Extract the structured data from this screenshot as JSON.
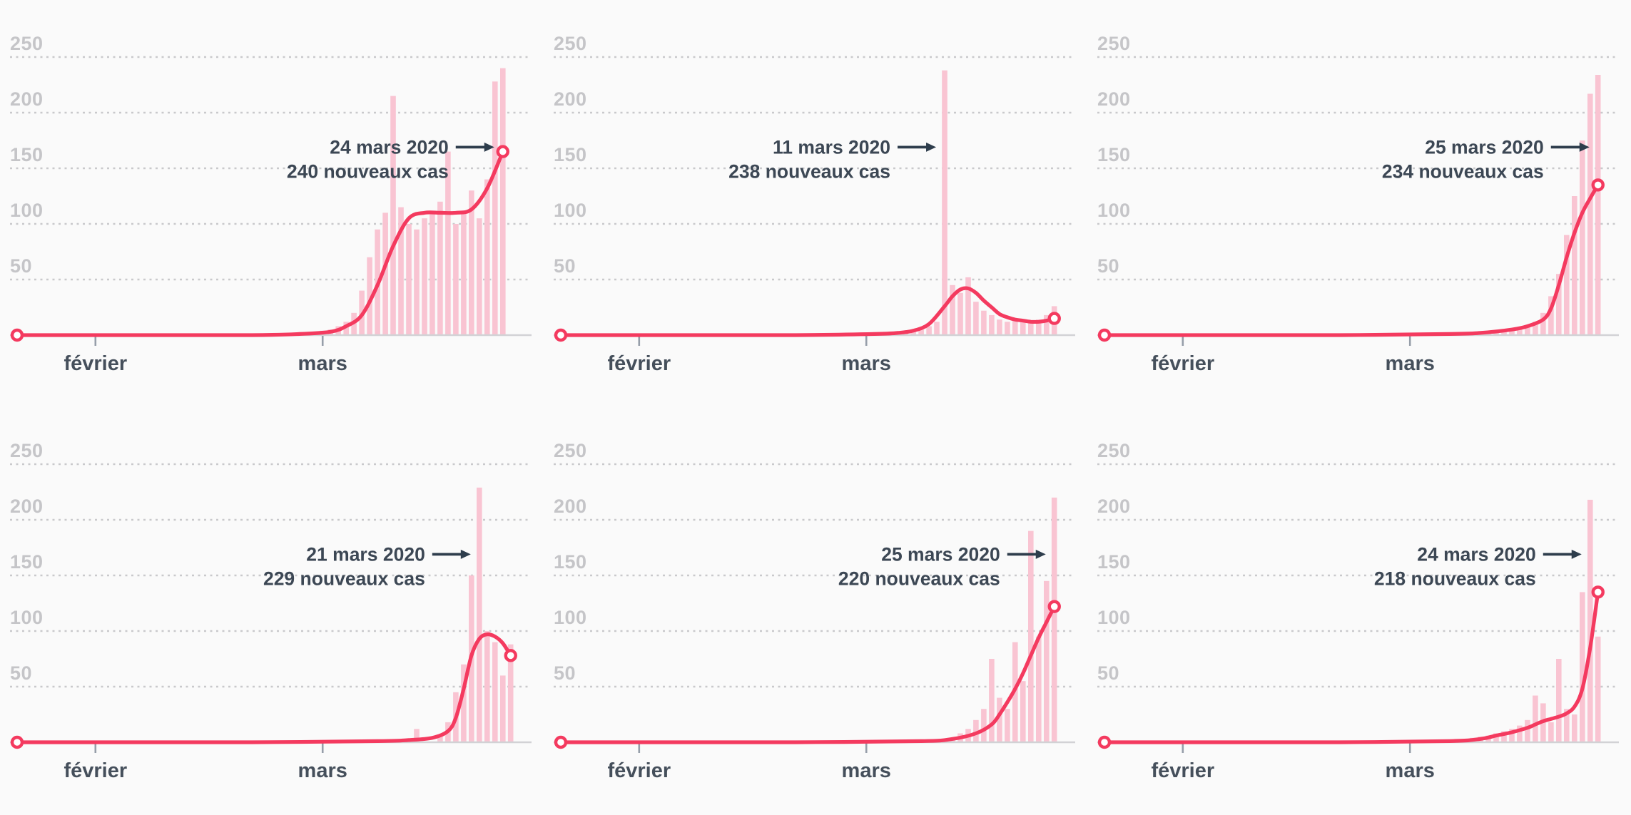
{
  "page": {
    "background": "#fafafa"
  },
  "colors": {
    "line": "#f43a5f",
    "bar": "#f9c4d2",
    "grid": "#c9c9cc",
    "baseline": "#d2d2d5",
    "tick": "#969ea9",
    "y_label": "#c5c5c8",
    "x_label": "#454f5b",
    "annotation_text": "#3c4754",
    "arrow": "#2e3d4c",
    "marker_fill": "#ffffff"
  },
  "axes": {
    "y_ticks": [
      50,
      100,
      150,
      200,
      250
    ],
    "y_max": 250,
    "x_ticks": [
      {
        "label": "février",
        "day": 10
      },
      {
        "label": "mars",
        "day": 39
      }
    ],
    "total_days": 64,
    "grid": "dotted"
  },
  "chart_data": [
    {
      "type": "bar+line",
      "annotation": {
        "date": "24 mars 2020",
        "cases": "240 nouveaux cas",
        "value": 240,
        "target_day": 62
      },
      "bars": [
        [
          34,
          1
        ],
        [
          35,
          1
        ],
        [
          36,
          2
        ],
        [
          37,
          2
        ],
        [
          38,
          3
        ],
        [
          39,
          4
        ],
        [
          40,
          5
        ],
        [
          41,
          8
        ],
        [
          42,
          12
        ],
        [
          43,
          20
        ],
        [
          44,
          40
        ],
        [
          45,
          70
        ],
        [
          46,
          95
        ],
        [
          47,
          110
        ],
        [
          48,
          215
        ],
        [
          49,
          115
        ],
        [
          50,
          100
        ],
        [
          51,
          95
        ],
        [
          52,
          105
        ],
        [
          53,
          110
        ],
        [
          54,
          120
        ],
        [
          55,
          165
        ],
        [
          56,
          100
        ],
        [
          57,
          110
        ],
        [
          58,
          130
        ],
        [
          59,
          105
        ],
        [
          60,
          140
        ],
        [
          61,
          228
        ],
        [
          62,
          240
        ]
      ],
      "line": [
        [
          0,
          0
        ],
        [
          15,
          0
        ],
        [
          30,
          0
        ],
        [
          36,
          1
        ],
        [
          40,
          3
        ],
        [
          42,
          8
        ],
        [
          44,
          18
        ],
        [
          46,
          45
        ],
        [
          48,
          80
        ],
        [
          50,
          105
        ],
        [
          52,
          110
        ],
        [
          54,
          110
        ],
        [
          56,
          110
        ],
        [
          58,
          113
        ],
        [
          60,
          132
        ],
        [
          62,
          165
        ]
      ]
    },
    {
      "type": "bar+line",
      "annotation": {
        "date": "11 mars 2020",
        "cases": "238 nouveaux cas",
        "value": 238,
        "target_day": 49
      },
      "bars": [
        [
          41,
          2
        ],
        [
          42,
          2
        ],
        [
          43,
          3
        ],
        [
          44,
          3
        ],
        [
          45,
          4
        ],
        [
          46,
          5
        ],
        [
          47,
          8
        ],
        [
          48,
          12
        ],
        [
          49,
          238
        ],
        [
          50,
          45
        ],
        [
          51,
          38
        ],
        [
          52,
          52
        ],
        [
          53,
          30
        ],
        [
          54,
          22
        ],
        [
          55,
          18
        ],
        [
          56,
          14
        ],
        [
          57,
          12
        ],
        [
          58,
          15
        ],
        [
          59,
          13
        ],
        [
          60,
          12
        ],
        [
          61,
          14
        ],
        [
          62,
          18
        ],
        [
          63,
          26
        ]
      ],
      "line": [
        [
          0,
          0
        ],
        [
          15,
          0
        ],
        [
          30,
          0
        ],
        [
          40,
          1
        ],
        [
          43,
          2
        ],
        [
          45,
          4
        ],
        [
          47,
          10
        ],
        [
          49,
          26
        ],
        [
          50,
          35
        ],
        [
          51,
          41
        ],
        [
          52,
          42
        ],
        [
          53,
          38
        ],
        [
          54,
          31
        ],
        [
          55,
          25
        ],
        [
          56,
          19
        ],
        [
          57,
          16
        ],
        [
          58,
          14
        ],
        [
          59,
          13
        ],
        [
          60,
          12
        ],
        [
          61,
          12
        ],
        [
          62,
          13
        ],
        [
          63,
          15
        ]
      ]
    },
    {
      "type": "bar+line",
      "annotation": {
        "date": "25 mars 2020",
        "cases": "234 nouveaux cas",
        "value": 234,
        "target_day": 63
      },
      "bars": [
        [
          48,
          2
        ],
        [
          49,
          3
        ],
        [
          50,
          3
        ],
        [
          51,
          4
        ],
        [
          52,
          5
        ],
        [
          53,
          6
        ],
        [
          54,
          8
        ],
        [
          55,
          12
        ],
        [
          56,
          20
        ],
        [
          57,
          35
        ],
        [
          58,
          55
        ],
        [
          59,
          90
        ],
        [
          60,
          125
        ],
        [
          61,
          175
        ],
        [
          62,
          217
        ],
        [
          63,
          234
        ]
      ],
      "line": [
        [
          0,
          0
        ],
        [
          15,
          0
        ],
        [
          30,
          0
        ],
        [
          44,
          1
        ],
        [
          48,
          2
        ],
        [
          52,
          5
        ],
        [
          54,
          8
        ],
        [
          56,
          14
        ],
        [
          57,
          24
        ],
        [
          58,
          45
        ],
        [
          59,
          70
        ],
        [
          60,
          92
        ],
        [
          61,
          110
        ],
        [
          62,
          123
        ],
        [
          63,
          135
        ]
      ]
    },
    {
      "type": "bar+line",
      "annotation": {
        "date": "21 mars 2020",
        "cases": "229 nouveaux cas",
        "value": 229,
        "target_day": 59
      },
      "bars": [
        [
          51,
          12
        ],
        [
          54,
          6
        ],
        [
          55,
          18
        ],
        [
          56,
          45
        ],
        [
          57,
          70
        ],
        [
          58,
          150
        ],
        [
          59,
          229
        ],
        [
          60,
          100
        ],
        [
          61,
          90
        ],
        [
          62,
          60
        ],
        [
          63,
          88
        ]
      ],
      "line": [
        [
          0,
          0
        ],
        [
          15,
          0
        ],
        [
          30,
          0
        ],
        [
          46,
          1
        ],
        [
          50,
          2
        ],
        [
          53,
          4
        ],
        [
          55,
          10
        ],
        [
          56,
          22
        ],
        [
          57,
          48
        ],
        [
          58,
          78
        ],
        [
          59,
          93
        ],
        [
          60,
          97
        ],
        [
          61,
          95
        ],
        [
          62,
          89
        ],
        [
          63,
          78
        ]
      ]
    },
    {
      "type": "bar+line",
      "annotation": {
        "date": "25 mars 2020",
        "cases": "220 nouveaux cas",
        "value": 220,
        "target_day": 63
      },
      "bars": [
        [
          50,
          4
        ],
        [
          51,
          8
        ],
        [
          52,
          12
        ],
        [
          53,
          20
        ],
        [
          54,
          30
        ],
        [
          55,
          75
        ],
        [
          56,
          40
        ],
        [
          57,
          30
        ],
        [
          58,
          90
        ],
        [
          59,
          55
        ],
        [
          60,
          190
        ],
        [
          61,
          95
        ],
        [
          62,
          145
        ],
        [
          63,
          220
        ]
      ],
      "line": [
        [
          0,
          0
        ],
        [
          15,
          0
        ],
        [
          30,
          0
        ],
        [
          46,
          1
        ],
        [
          50,
          3
        ],
        [
          53,
          8
        ],
        [
          55,
          16
        ],
        [
          56,
          25
        ],
        [
          57,
          36
        ],
        [
          58,
          48
        ],
        [
          59,
          62
        ],
        [
          60,
          78
        ],
        [
          61,
          94
        ],
        [
          62,
          108
        ],
        [
          63,
          122
        ]
      ]
    },
    {
      "type": "bar+line",
      "annotation": {
        "date": "24 mars 2020",
        "cases": "218 nouveaux cas",
        "value": 218,
        "target_day": 62
      },
      "bars": [
        [
          43,
          2
        ],
        [
          45,
          3
        ],
        [
          47,
          4
        ],
        [
          48,
          5
        ],
        [
          49,
          6
        ],
        [
          50,
          8
        ],
        [
          51,
          10
        ],
        [
          52,
          12
        ],
        [
          53,
          15
        ],
        [
          54,
          20
        ],
        [
          55,
          42
        ],
        [
          56,
          35
        ],
        [
          57,
          18
        ],
        [
          58,
          75
        ],
        [
          59,
          30
        ],
        [
          60,
          25
        ],
        [
          61,
          135
        ],
        [
          62,
          218
        ],
        [
          63,
          95
        ]
      ],
      "line": [
        [
          0,
          0
        ],
        [
          15,
          0
        ],
        [
          30,
          0
        ],
        [
          44,
          1
        ],
        [
          48,
          3
        ],
        [
          50,
          6
        ],
        [
          52,
          9
        ],
        [
          54,
          13
        ],
        [
          55,
          16
        ],
        [
          56,
          19
        ],
        [
          57,
          21
        ],
        [
          58,
          23
        ],
        [
          59,
          26
        ],
        [
          60,
          32
        ],
        [
          61,
          48
        ],
        [
          62,
          85
        ],
        [
          63,
          135
        ]
      ]
    }
  ]
}
